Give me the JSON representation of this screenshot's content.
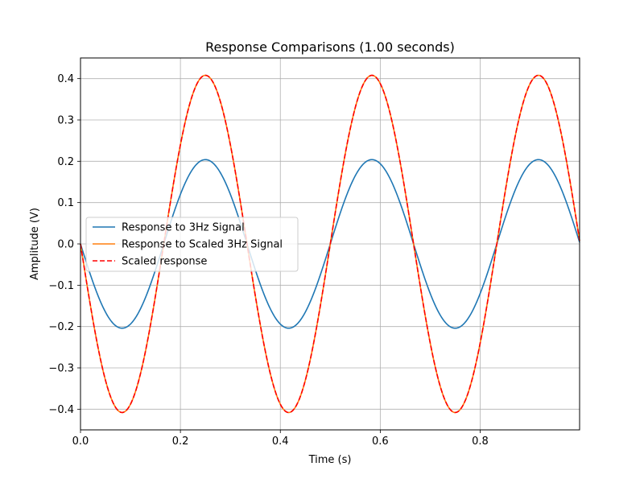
{
  "chart_data": {
    "type": "line",
    "title": "Response Comparisons (1.00 seconds)",
    "xlabel": "Time (s)",
    "ylabel": "Amplitude (V)",
    "xlim": [
      0,
      0.999
    ],
    "ylim": [
      -0.45,
      0.45
    ],
    "xticks": [
      0.0,
      0.2,
      0.4,
      0.6,
      0.8
    ],
    "xtick_labels": [
      "0.0",
      "0.2",
      "0.4",
      "0.6",
      "0.8"
    ],
    "yticks": [
      -0.4,
      -0.3,
      -0.2,
      -0.1,
      0.0,
      0.1,
      0.2,
      0.3,
      0.4
    ],
    "ytick_labels": [
      "−0.4",
      "−0.3",
      "−0.2",
      "−0.1",
      "0.0",
      "0.1",
      "0.2",
      "0.3",
      "0.4"
    ],
    "grid": true,
    "legend_position": "center-left",
    "signal_frequency_hz": 3,
    "series": [
      {
        "name": "Response to 3Hz Signal",
        "amplitude": 0.204,
        "color": "#1f77b4",
        "style": "solid",
        "x": [
          0.0,
          0.083,
          0.167,
          0.25,
          0.333,
          0.417,
          0.5,
          0.583,
          0.667,
          0.75,
          0.833,
          0.917,
          0.999
        ],
        "y": [
          0.0,
          -0.204,
          0.0,
          0.204,
          0.0,
          -0.204,
          0.0,
          0.204,
          0.0,
          -0.204,
          0.0,
          0.204,
          0.0
        ]
      },
      {
        "name": "Response to Scaled 3Hz Signal",
        "amplitude": 0.408,
        "color": "#ff7f0e",
        "style": "solid",
        "x": [
          0.0,
          0.083,
          0.167,
          0.25,
          0.333,
          0.417,
          0.5,
          0.583,
          0.667,
          0.75,
          0.833,
          0.917,
          0.999
        ],
        "y": [
          0.0,
          -0.408,
          0.0,
          0.408,
          0.0,
          -0.408,
          0.0,
          0.408,
          0.0,
          -0.408,
          0.0,
          0.408,
          0.0
        ]
      },
      {
        "name": "Scaled response",
        "amplitude": 0.408,
        "color": "#ff0000",
        "style": "dashed",
        "x": [
          0.0,
          0.083,
          0.167,
          0.25,
          0.333,
          0.417,
          0.5,
          0.583,
          0.667,
          0.75,
          0.833,
          0.917,
          0.999
        ],
        "y": [
          0.0,
          -0.408,
          0.0,
          0.408,
          0.0,
          -0.408,
          0.0,
          0.408,
          0.0,
          -0.408,
          0.0,
          0.408,
          0.0
        ]
      }
    ]
  }
}
